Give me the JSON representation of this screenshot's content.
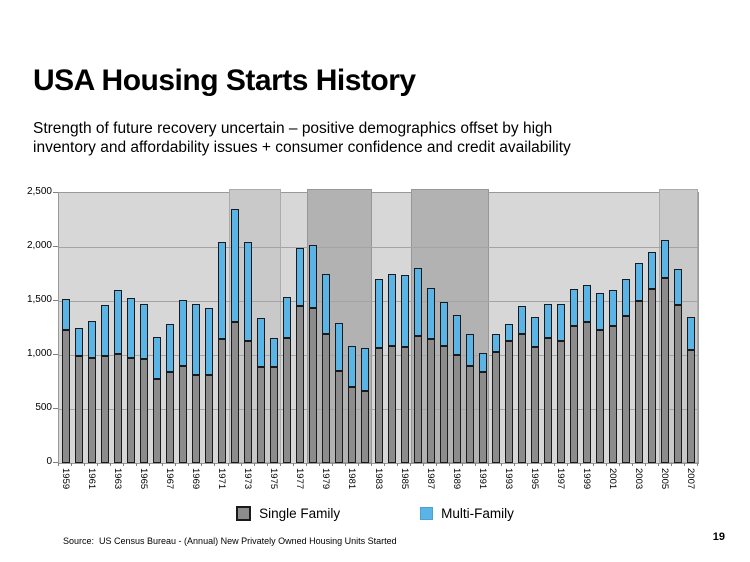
{
  "page": {
    "title": "USA Housing Starts History",
    "subtitle_line1": "Strength of future recovery uncertain – positive demographics offset by high",
    "subtitle_line2": "inventory and affordability issues + consumer confidence and credit availability",
    "source": "Source:  US Census Bureau - (Annual) New Privately Owned Housing Units Started",
    "page_number": "19"
  },
  "chart_data": {
    "type": "bar",
    "stacked": true,
    "title": "",
    "xlabel": "",
    "ylabel": "",
    "ylim": [
      0,
      2500
    ],
    "ytick_interval": 500,
    "ytick_labels": [
      "0",
      "500",
      "1,000",
      "1,500",
      "2,000",
      "2,500"
    ],
    "x": [
      1959,
      1960,
      1961,
      1962,
      1963,
      1964,
      1965,
      1966,
      1967,
      1968,
      1969,
      1970,
      1971,
      1972,
      1973,
      1974,
      1975,
      1976,
      1977,
      1978,
      1979,
      1980,
      1981,
      1982,
      1983,
      1984,
      1985,
      1986,
      1987,
      1988,
      1989,
      1990,
      1991,
      1992,
      1993,
      1994,
      1995,
      1996,
      1997,
      1998,
      1999,
      2000,
      2001,
      2002,
      2003,
      2004,
      2005,
      2006,
      2007
    ],
    "x_tick_labels": [
      "1959",
      "1961",
      "1963",
      "1965",
      "1967",
      "1969",
      "1971",
      "1973",
      "1975",
      "1977",
      "1979",
      "1981",
      "1983",
      "1985",
      "1987",
      "1989",
      "1991",
      "1993",
      "1995",
      "1997",
      "1999",
      "2001",
      "2003",
      "2005",
      "2007"
    ],
    "series": [
      {
        "name": "Single Family",
        "color": "#8C8C8C",
        "values": [
          1234,
          995,
          974,
          991,
          1012,
          970,
          964,
          779,
          844,
          899,
          811,
          813,
          1151,
          1309,
          1132,
          888,
          892,
          1162,
          1451,
          1433,
          1194,
          852,
          705,
          663,
          1068,
          1084,
          1072,
          1179,
          1146,
          1081,
          1003,
          895,
          840,
          1030,
          1126,
          1198,
          1076,
          1161,
          1134,
          1271,
          1302,
          1231,
          1273,
          1359,
          1499,
          1611,
          1716,
          1465,
          1046
        ]
      },
      {
        "name": "Multi-Family",
        "color": "#5BB4E6",
        "values": [
          283,
          257,
          339,
          472,
          591,
          559,
          509,
          386,
          448,
          609,
          656,
          621,
          901,
          1048,
          913,
          450,
          268,
          376,
          536,
          587,
          551,
          440,
          379,
          400,
          636,
          665,
          670,
          626,
          474,
          407,
          373,
          298,
          174,
          170,
          162,
          259,
          278,
          316,
          340,
          346,
          339,
          338,
          330,
          346,
          349,
          345,
          352,
          336,
          309
        ]
      }
    ],
    "shaded_bands": [
      {
        "from": 1972,
        "to": 1975,
        "shade": "light"
      },
      {
        "from": 1978,
        "to": 1982,
        "shade": "dark"
      },
      {
        "from": 1986,
        "to": 1991,
        "shade": "dark"
      },
      {
        "from": 2005,
        "to": 2007,
        "shade": "light"
      }
    ],
    "legend_position": "bottom",
    "grid": true,
    "colors": {
      "plot_background": "#D7D7D7",
      "band_light": "#C9C9C9",
      "band_dark": "#B2B2B2",
      "gridline": "#A4A4A4",
      "bar_outline": "#1A1A1A"
    }
  }
}
